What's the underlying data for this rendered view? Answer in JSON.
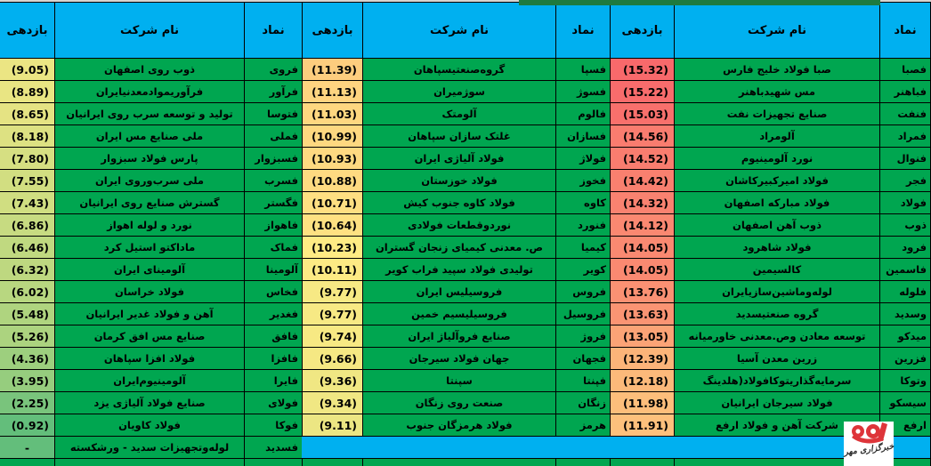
{
  "colors": {
    "header_bg": "#00b0f0",
    "row_bg": "#00a650",
    "border": "#000000",
    "band_bg": "#00b0f0",
    "top_strip": "#d7d4d1",
    "top_artifact": "#1e7a3f",
    "logo_bg": "#ffffff",
    "logo_red": "#de353a",
    "logo_text": "#2b2b2b",
    "text": "#000000"
  },
  "headers": {
    "symbol": "نماد",
    "company": "نام شرکت",
    "yield": "بازدهی"
  },
  "groups": [
    {
      "name": "right",
      "rows": [
        {
          "sym": "فصبا",
          "name": "صبا فولاد خلیج فارس",
          "val": "(15.32)",
          "bg": "#F8696B"
        },
        {
          "sym": "فباهنر",
          "name": "مس شهیدباهنر",
          "val": "(15.22)",
          "bg": "#F86C6C"
        },
        {
          "sym": "فنفت",
          "name": "صنایع تجهیزات نفت",
          "val": "(15.03)",
          "bg": "#F8706C"
        },
        {
          "sym": "فمراد",
          "name": "آلومراد",
          "val": "(14.56)",
          "bg": "#F97C6F"
        },
        {
          "sym": "فنوال",
          "name": "نورد آلومینیوم",
          "val": "(14.52)",
          "bg": "#F97D6F"
        },
        {
          "sym": "فجر",
          "name": "فولاد امیرکبیرکاشان",
          "val": "(14.42)",
          "bg": "#F9806F"
        },
        {
          "sym": "فولاد",
          "name": "فولاد مبارکه اصفهان",
          "val": "(14.32)",
          "bg": "#F98270"
        },
        {
          "sym": "ذوب",
          "name": "ذوب آهن اصفهان",
          "val": "(14.12)",
          "bg": "#FA8871"
        },
        {
          "sym": "فرود",
          "name": "فولاد شاهرود",
          "val": "(14.05)",
          "bg": "#FA8971"
        },
        {
          "sym": "فاسمین",
          "name": "کالسیمین",
          "val": "(14.05)",
          "bg": "#FA8971"
        },
        {
          "sym": "فلوله",
          "name": "لوله‌وماشین‌سازیایران",
          "val": "(13.76)",
          "bg": "#FA9173"
        },
        {
          "sym": "وسدید",
          "name": "گروه صنعتیسدید",
          "val": "(13.63)",
          "bg": "#FA9473"
        },
        {
          "sym": "میدکو",
          "name": "توسعه معادن وص.معدنی خاورمیانه",
          "val": "(13.05)",
          "bg": "#FBA376"
        },
        {
          "sym": "فزرین",
          "name": "زرین معدن آسیا",
          "val": "(12.39)",
          "bg": "#FCB479"
        },
        {
          "sym": "وتوکا",
          "name": "سرمایه‌گذاریتوکافولاد(هلدینگ",
          "val": "(12.18)",
          "bg": "#FCB97A"
        },
        {
          "sym": "سیسکو",
          "name": "فولاد سیرجان ایرانیان",
          "val": "(11.98)",
          "bg": "#FDBE7B"
        },
        {
          "sym": "ارفع",
          "name": "شرکت آهن و فولاد ارفع",
          "val": "(11.91)",
          "bg": "#FDC07C"
        }
      ]
    },
    {
      "name": "middle",
      "rows": [
        {
          "sym": "فسپا",
          "name": "گروه‌صنعتیسپاهان",
          "val": "(11.39)",
          "bg": "#FDCD7E"
        },
        {
          "sym": "فسوژ",
          "name": "سوژمیران",
          "val": "(11.13)",
          "bg": "#FED480"
        },
        {
          "sym": "فالوم",
          "name": "آلومتک",
          "val": "(11.03)",
          "bg": "#FED780"
        },
        {
          "sym": "فسازان",
          "name": "غلتک سازان سپاهان",
          "val": "(10.99)",
          "bg": "#FED880"
        },
        {
          "sym": "فولاژ",
          "name": "فولاد آلیاژی ایران",
          "val": "(10.93)",
          "bg": "#FED981"
        },
        {
          "sym": "فخوز",
          "name": "فولاد خوزستان",
          "val": "(10.88)",
          "bg": "#FEDA81"
        },
        {
          "sym": "کاوه",
          "name": "فولاد کاوه جنوب کیش",
          "val": "(10.71)",
          "bg": "#FEDF82"
        },
        {
          "sym": "فنورد",
          "name": "نوردوقطعات فولادی",
          "val": "(10.64)",
          "bg": "#FEE182"
        },
        {
          "sym": "کیمیا",
          "name": "ص. معدنی کیمیای زنجان گستران",
          "val": "(10.23)",
          "bg": "#FFEB84"
        },
        {
          "sym": "کویر",
          "name": "تولیدی فولاد سپید فراب کویر",
          "val": "(10.11)",
          "bg": "#FDEA84"
        },
        {
          "sym": "فروس",
          "name": "فروسیلیس ایران",
          "val": "(9.77)",
          "bg": "#F7E984"
        },
        {
          "sym": "فروسیل",
          "name": "فروسیلیسیم خمین",
          "val": "(9.77)",
          "bg": "#F7E984"
        },
        {
          "sym": "فروژ",
          "name": "صنایع فروآلیاژ ایران",
          "val": "(9.74)",
          "bg": "#F7E983"
        },
        {
          "sym": "فجهان",
          "name": "جهان فولاد سیرجان",
          "val": "(9.66)",
          "bg": "#F5E883"
        },
        {
          "sym": "فپنتا",
          "name": "سپنتا",
          "val": "(9.36)",
          "bg": "#F0E783"
        },
        {
          "sym": "زنگان",
          "name": "صنعت روی زنگان",
          "val": "(9.34)",
          "bg": "#F0E783"
        },
        {
          "sym": "هرمز",
          "name": "فولاد هرمزگان جنوب",
          "val": "(9.11)",
          "bg": "#ECE683"
        }
      ]
    },
    {
      "name": "left",
      "rows": [
        {
          "sym": "فروی",
          "name": "ذوب روی اصفهان",
          "val": "(9.05)",
          "bg": "#EBE583"
        },
        {
          "sym": "فرآور",
          "name": "فرآوریموادمعدنیایران",
          "val": "(8.89)",
          "bg": "#E9E583"
        },
        {
          "sym": "فتوسا",
          "name": "تولید و توسعه سرب روی ایرانیان",
          "val": "(8.65)",
          "bg": "#E5E383"
        },
        {
          "sym": "فملی",
          "name": "ملی صنایع مس ایران",
          "val": "(8.18)",
          "bg": "#DDE182"
        },
        {
          "sym": "فسبزوار",
          "name": "پارس فولاد سبزوار",
          "val": "(7.80)",
          "bg": "#D6DF82"
        },
        {
          "sym": "فسرب",
          "name": "ملی سرب‌وروی ایران",
          "val": "(7.55)",
          "bg": "#D2DE81"
        },
        {
          "sym": "فگستر",
          "name": "گسترش صنایع روی ایرانیان",
          "val": "(7.43)",
          "bg": "#D0DE81"
        },
        {
          "sym": "فاهواز",
          "name": "نورد و لوله اهواز",
          "val": "(6.86)",
          "bg": "#C7DB81"
        },
        {
          "sym": "فماک",
          "name": "ماداکتو استیل کرد",
          "val": "(6.46)",
          "bg": "#C0D980"
        },
        {
          "sym": "آلومینا",
          "name": "آلومینای ایران",
          "val": "(6.32)",
          "bg": "#BED880"
        },
        {
          "sym": "فخاس",
          "name": "فولاد خراسان",
          "val": "(6.02)",
          "bg": "#B8D780"
        },
        {
          "sym": "فغدیر",
          "name": "آهن و فولاد غدیر ایرانیان",
          "val": "(5.48)",
          "bg": "#AFD47F"
        },
        {
          "sym": "فافق",
          "name": "صنایع مس افق کرمان",
          "val": "(5.26)",
          "bg": "#ACD37F"
        },
        {
          "sym": "فافزا",
          "name": "فولاد افزا سپاهان",
          "val": "(4.36)",
          "bg": "#9DCF7E"
        },
        {
          "sym": "فایرا",
          "name": "آلومینیوم‌ایران",
          "val": "(3.95)",
          "bg": "#96CD7E"
        },
        {
          "sym": "فولای",
          "name": "صنایع فولاد آلیاژی یزد",
          "val": "(2.25)",
          "bg": "#79C47C"
        },
        {
          "sym": "فوکا",
          "name": "فولاد کاویان",
          "val": "(0.92)",
          "bg": "#63BE7B"
        },
        {
          "sym": "فسدید",
          "name": "لوله‌وتجهیزات سدید - ورشکسته",
          "val": "-",
          "bg": "#63BE7B"
        }
      ]
    }
  ],
  "logo": {
    "label": "خبرگزاری مهر"
  }
}
